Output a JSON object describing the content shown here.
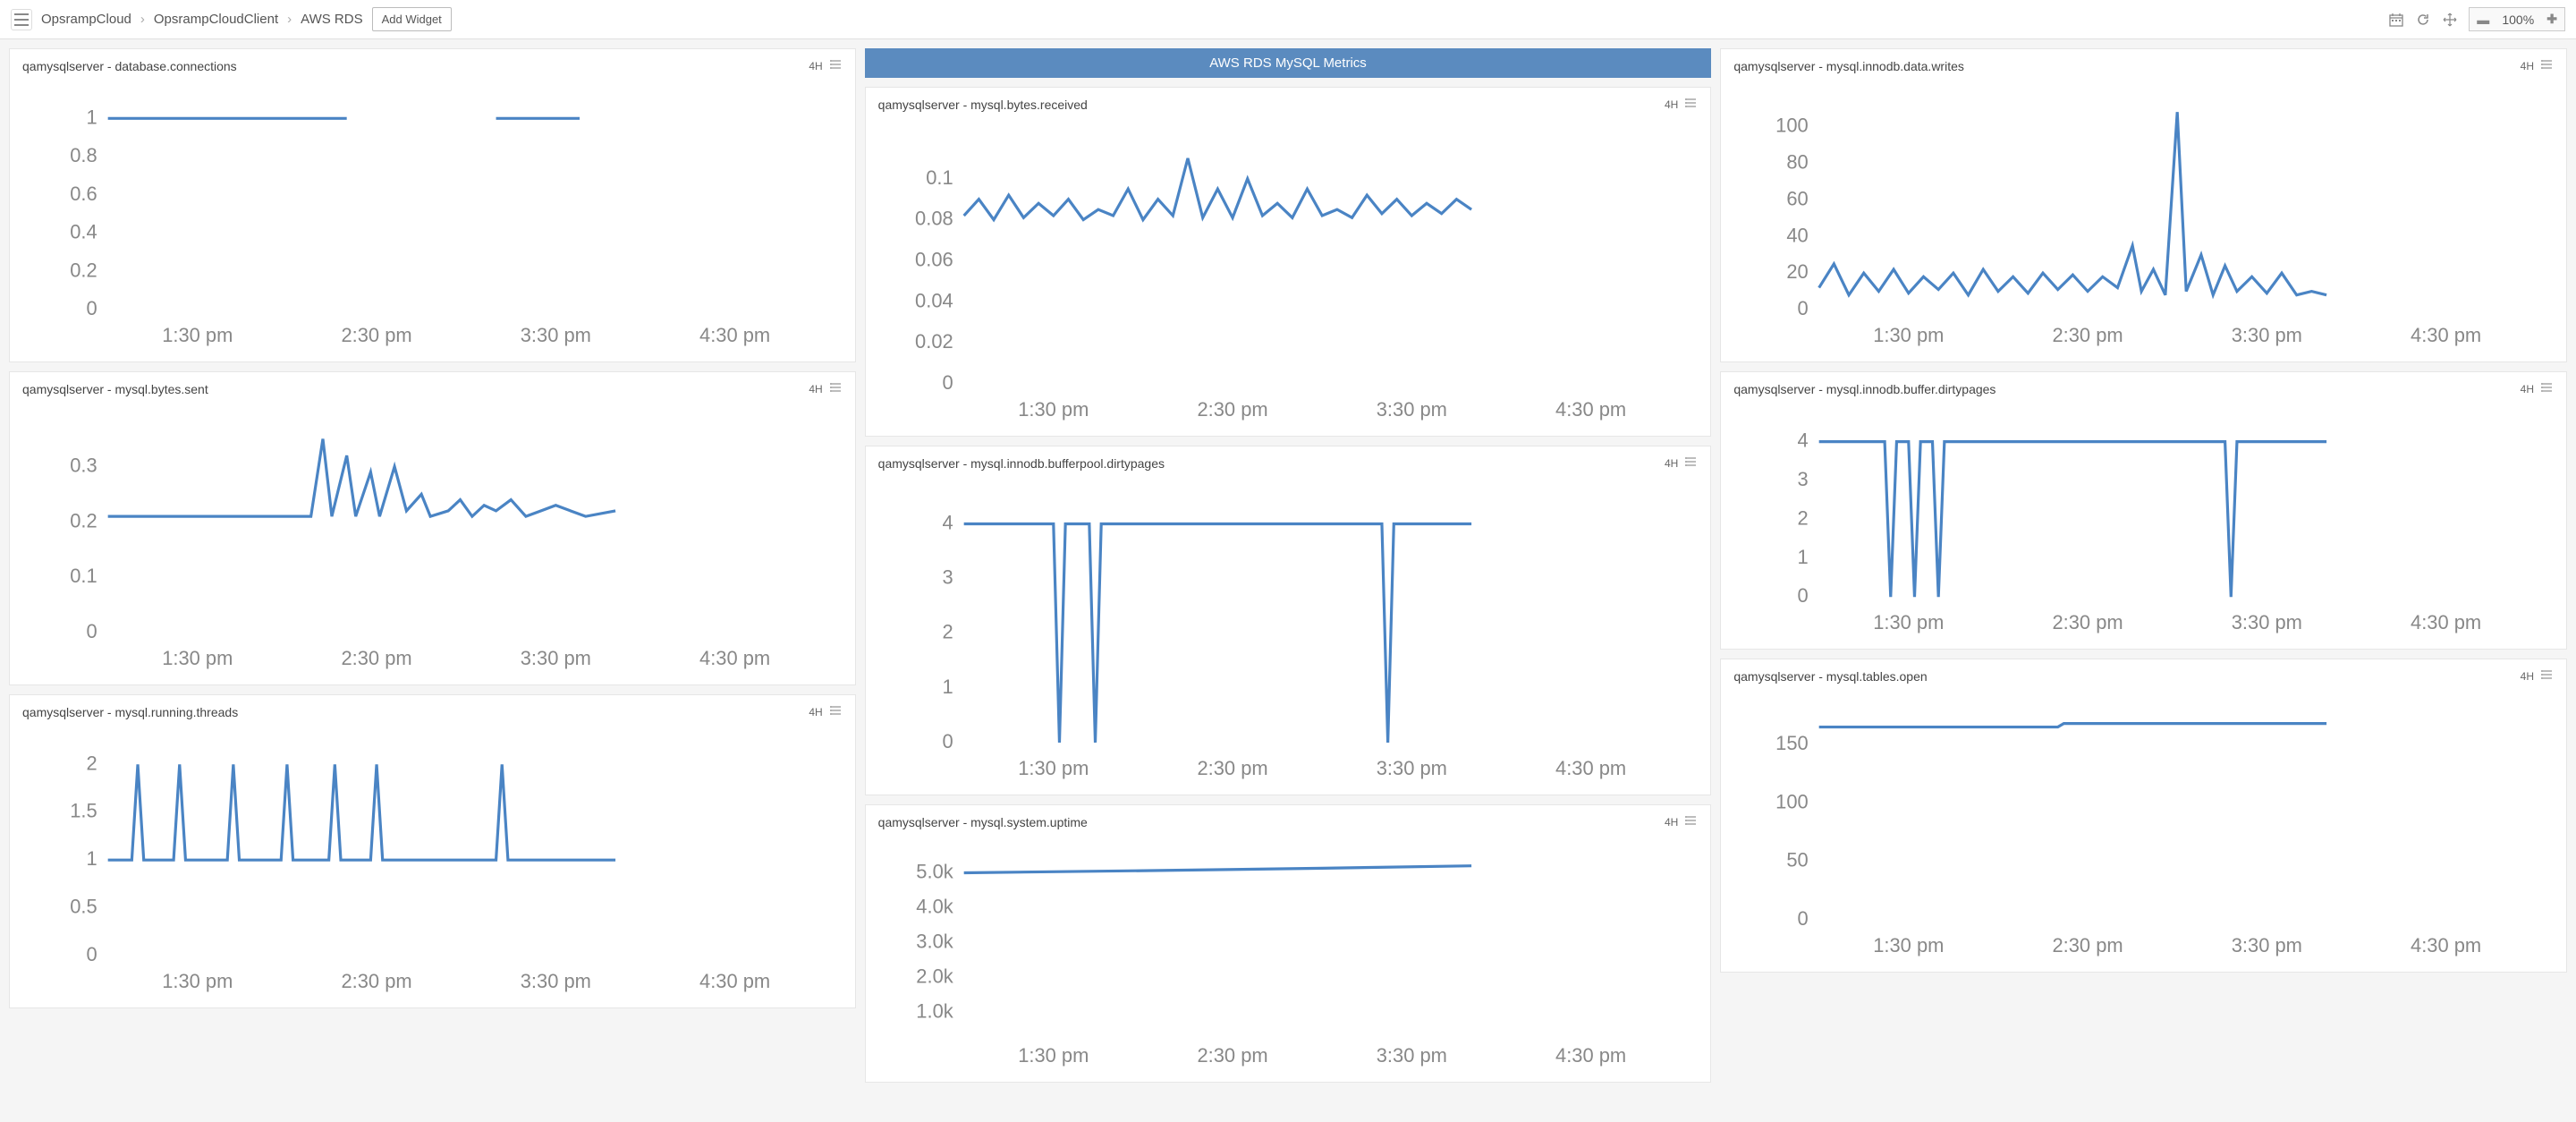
{
  "topbar": {
    "breadcrumb": [
      "OpsrampCloud",
      "OpsrampCloudClient",
      "AWS RDS"
    ],
    "add_widget_label": "Add Widget",
    "zoom_value": "100%"
  },
  "colors": {
    "line": "#4a84c4",
    "axis_text": "#888888",
    "section_header_bg": "#5b8bbf",
    "section_header_text": "#ffffff",
    "widget_bg": "#ffffff",
    "page_bg": "#f5f5f5"
  },
  "chart_defaults": {
    "xtick_labels": [
      "1:30 pm",
      "2:30 pm",
      "3:30 pm",
      "4:30 pm"
    ],
    "xdomain": [
      0,
      240
    ],
    "data_end_x": 170,
    "font_size_ticks": 11
  },
  "section_title": "AWS RDS MySQL Metrics",
  "range_label": "4H",
  "widgets": {
    "col1": [
      {
        "id": "db_conn",
        "title": "qamysqlserver - database.connections",
        "yticks": [
          0,
          0.2,
          0.4,
          0.6,
          0.8,
          1
        ],
        "ytick_labels": [
          "0",
          "0.2",
          "0.4",
          "0.6",
          "0.8",
          "1"
        ],
        "ylim": [
          0,
          1.1
        ],
        "height": 150,
        "series": [
          {
            "gap": true,
            "segments": [
              {
                "pts": [
                  [
                    0,
                    1
                  ],
                  [
                    80,
                    1
                  ]
                ]
              },
              {
                "pts": [
                  [
                    130,
                    1
                  ],
                  [
                    158,
                    1
                  ]
                ]
              }
            ]
          }
        ]
      },
      {
        "id": "bytes_sent",
        "title": "qamysqlserver - mysql.bytes.sent",
        "yticks": [
          0,
          0.1,
          0.2,
          0.3
        ],
        "ytick_labels": [
          "0",
          "0.1",
          "0.2",
          "0.3"
        ],
        "ylim": [
          0,
          0.38
        ],
        "height": 150,
        "series": [
          {
            "pts": [
              [
                0,
                0.21
              ],
              [
                60,
                0.21
              ],
              [
                68,
                0.21
              ],
              [
                72,
                0.35
              ],
              [
                75,
                0.21
              ],
              [
                80,
                0.32
              ],
              [
                83,
                0.21
              ],
              [
                88,
                0.29
              ],
              [
                91,
                0.21
              ],
              [
                96,
                0.3
              ],
              [
                100,
                0.22
              ],
              [
                105,
                0.25
              ],
              [
                108,
                0.21
              ],
              [
                114,
                0.22
              ],
              [
                118,
                0.24
              ],
              [
                122,
                0.21
              ],
              [
                126,
                0.23
              ],
              [
                130,
                0.22
              ],
              [
                135,
                0.24
              ],
              [
                140,
                0.21
              ],
              [
                145,
                0.22
              ],
              [
                150,
                0.23
              ],
              [
                155,
                0.22
              ],
              [
                160,
                0.21
              ],
              [
                170,
                0.22
              ]
            ]
          }
        ]
      },
      {
        "id": "running_threads",
        "title": "qamysqlserver - mysql.running.threads",
        "yticks": [
          0,
          0.5,
          1,
          1.5,
          2
        ],
        "ytick_labels": [
          "0",
          "0.5",
          "1",
          "1.5",
          "2"
        ],
        "ylim": [
          0,
          2.2
        ],
        "height": 150,
        "series": [
          {
            "pts": [
              [
                0,
                1
              ],
              [
                8,
                1
              ],
              [
                10,
                2
              ],
              [
                12,
                1
              ],
              [
                22,
                1
              ],
              [
                24,
                2
              ],
              [
                26,
                1
              ],
              [
                40,
                1
              ],
              [
                42,
                2
              ],
              [
                44,
                1
              ],
              [
                58,
                1
              ],
              [
                60,
                2
              ],
              [
                62,
                1
              ],
              [
                74,
                1
              ],
              [
                76,
                2
              ],
              [
                78,
                1
              ],
              [
                88,
                1
              ],
              [
                90,
                2
              ],
              [
                92,
                1
              ],
              [
                130,
                1
              ],
              [
                132,
                2
              ],
              [
                134,
                1
              ],
              [
                170,
                1
              ]
            ]
          }
        ]
      }
    ],
    "col2": [
      {
        "id": "bytes_received",
        "title": "qamysqlserver - mysql.bytes.received",
        "yticks": [
          0,
          0.02,
          0.04,
          0.06,
          0.08,
          0.1
        ],
        "ytick_labels": [
          "0",
          "0.02",
          "0.04",
          "0.06",
          "0.08",
          "0.1"
        ],
        "ylim": [
          0,
          0.12
        ],
        "height": 170,
        "series": [
          {
            "pts": [
              [
                0,
                0.082
              ],
              [
                5,
                0.09
              ],
              [
                10,
                0.08
              ],
              [
                15,
                0.092
              ],
              [
                20,
                0.081
              ],
              [
                25,
                0.088
              ],
              [
                30,
                0.082
              ],
              [
                35,
                0.09
              ],
              [
                40,
                0.08
              ],
              [
                45,
                0.085
              ],
              [
                50,
                0.082
              ],
              [
                55,
                0.095
              ],
              [
                60,
                0.08
              ],
              [
                65,
                0.09
              ],
              [
                70,
                0.082
              ],
              [
                75,
                0.11
              ],
              [
                80,
                0.081
              ],
              [
                85,
                0.095
              ],
              [
                90,
                0.081
              ],
              [
                95,
                0.1
              ],
              [
                100,
                0.082
              ],
              [
                105,
                0.088
              ],
              [
                110,
                0.081
              ],
              [
                115,
                0.095
              ],
              [
                120,
                0.082
              ],
              [
                125,
                0.085
              ],
              [
                130,
                0.081
              ],
              [
                135,
                0.092
              ],
              [
                140,
                0.083
              ],
              [
                145,
                0.09
              ],
              [
                150,
                0.082
              ],
              [
                155,
                0.088
              ],
              [
                160,
                0.083
              ],
              [
                165,
                0.09
              ],
              [
                170,
                0.085
              ]
            ]
          }
        ]
      },
      {
        "id": "bufferpool_dirty",
        "title": "qamysqlserver - mysql.innodb.bufferpool.dirtypages",
        "yticks": [
          0,
          1,
          2,
          3,
          4
        ],
        "ytick_labels": [
          "0",
          "1",
          "2",
          "3",
          "4"
        ],
        "ylim": [
          0,
          4.5
        ],
        "height": 170,
        "series": [
          {
            "pts": [
              [
                0,
                4
              ],
              [
                30,
                4
              ],
              [
                32,
                0
              ],
              [
                34,
                4
              ],
              [
                42,
                4
              ],
              [
                44,
                0
              ],
              [
                46,
                4
              ],
              [
                140,
                4
              ],
              [
                142,
                0
              ],
              [
                144,
                4
              ],
              [
                170,
                4
              ]
            ]
          }
        ]
      },
      {
        "id": "uptime",
        "title": "qamysqlserver - mysql.system.uptime",
        "yticks": [
          1000,
          2000,
          3000,
          4000,
          5000
        ],
        "ytick_labels": [
          "1.0k",
          "2.0k",
          "3.0k",
          "4.0k",
          "5.0k"
        ],
        "ylim": [
          500,
          5500
        ],
        "height": 130,
        "series": [
          {
            "pts": [
              [
                0,
                5000
              ],
              [
                60,
                5060
              ],
              [
                120,
                5130
              ],
              [
                170,
                5200
              ]
            ]
          }
        ]
      }
    ],
    "col3": [
      {
        "id": "data_writes",
        "title": "qamysqlserver - mysql.innodb.data.writes",
        "yticks": [
          0,
          20,
          40,
          60,
          80,
          100
        ],
        "ytick_labels": [
          "0",
          "20",
          "40",
          "60",
          "80",
          "100"
        ],
        "ylim": [
          0,
          115
        ],
        "height": 150,
        "series": [
          {
            "pts": [
              [
                0,
                12
              ],
              [
                5,
                25
              ],
              [
                10,
                8
              ],
              [
                15,
                20
              ],
              [
                20,
                10
              ],
              [
                25,
                22
              ],
              [
                30,
                9
              ],
              [
                35,
                18
              ],
              [
                40,
                11
              ],
              [
                45,
                20
              ],
              [
                50,
                8
              ],
              [
                55,
                22
              ],
              [
                60,
                10
              ],
              [
                65,
                18
              ],
              [
                70,
                9
              ],
              [
                75,
                20
              ],
              [
                80,
                11
              ],
              [
                85,
                19
              ],
              [
                90,
                10
              ],
              [
                95,
                18
              ],
              [
                100,
                12
              ],
              [
                105,
                35
              ],
              [
                108,
                10
              ],
              [
                112,
                22
              ],
              [
                116,
                8
              ],
              [
                120,
                108
              ],
              [
                123,
                10
              ],
              [
                128,
                30
              ],
              [
                132,
                8
              ],
              [
                136,
                24
              ],
              [
                140,
                10
              ],
              [
                145,
                18
              ],
              [
                150,
                9
              ],
              [
                155,
                20
              ],
              [
                160,
                8
              ],
              [
                165,
                10
              ],
              [
                170,
                8
              ]
            ]
          }
        ]
      },
      {
        "id": "buffer_dirty",
        "title": "qamysqlserver - mysql.innodb.buffer.dirtypages",
        "yticks": [
          0,
          1,
          2,
          3,
          4
        ],
        "ytick_labels": [
          "0",
          "1",
          "2",
          "3",
          "4"
        ],
        "ylim": [
          0,
          4.5
        ],
        "height": 130,
        "series": [
          {
            "pts": [
              [
                0,
                4
              ],
              [
                22,
                4
              ],
              [
                24,
                0
              ],
              [
                26,
                4
              ],
              [
                30,
                4
              ],
              [
                32,
                0
              ],
              [
                34,
                4
              ],
              [
                38,
                4
              ],
              [
                40,
                0
              ],
              [
                42,
                4
              ],
              [
                136,
                4
              ],
              [
                138,
                0
              ],
              [
                140,
                4
              ],
              [
                170,
                4
              ]
            ]
          }
        ]
      },
      {
        "id": "tables_open",
        "title": "qamysqlserver - mysql.tables.open",
        "yticks": [
          0,
          50,
          100,
          150
        ],
        "ytick_labels": [
          "0",
          "50",
          "100",
          "150"
        ],
        "ylim": [
          0,
          180
        ],
        "height": 150,
        "series": [
          {
            "pts": [
              [
                0,
                165
              ],
              [
                80,
                165
              ],
              [
                82,
                168
              ],
              [
                170,
                168
              ]
            ]
          }
        ]
      }
    ]
  }
}
